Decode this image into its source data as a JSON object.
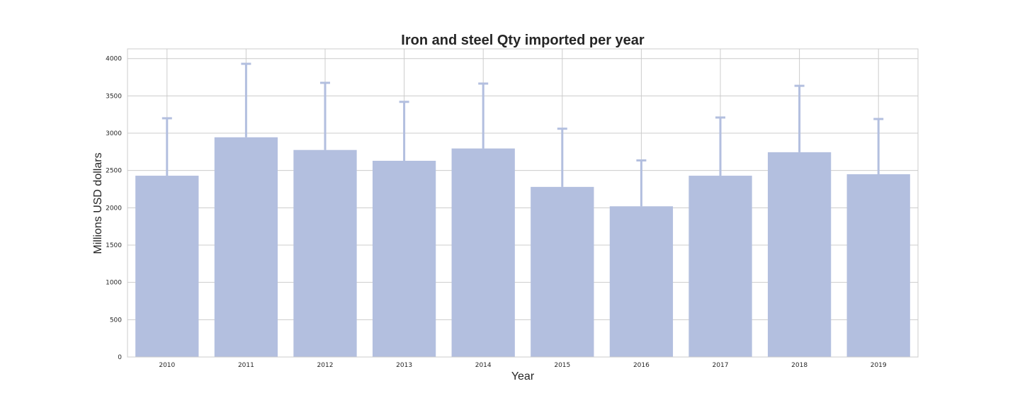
{
  "chart_data": {
    "type": "bar",
    "title": "Iron and steel Qty imported per year",
    "xlabel": "Year",
    "ylabel": "Millions USD dollars",
    "categories": [
      "2010",
      "2011",
      "2012",
      "2013",
      "2014",
      "2015",
      "2016",
      "2017",
      "2018",
      "2019"
    ],
    "values": [
      2430,
      2945,
      2775,
      2630,
      2795,
      2280,
      2020,
      2430,
      2745,
      2450
    ],
    "error_upper": [
      3200,
      3930,
      3675,
      3420,
      3665,
      3060,
      2635,
      3210,
      3635,
      3190
    ],
    "ylim": [
      0,
      4130
    ],
    "yticks": [
      0,
      500,
      1000,
      1500,
      2000,
      2500,
      3000,
      3500,
      4000
    ],
    "ytick_labels": [
      "0",
      "500",
      "1000",
      "1500",
      "2000",
      "2500",
      "3000",
      "3500",
      "4000"
    ],
    "grid": true,
    "bar_color": "#b3bfdf",
    "error_color": "#b3bfdf",
    "grid_color": "#cccccc",
    "text_color": "#262626"
  }
}
